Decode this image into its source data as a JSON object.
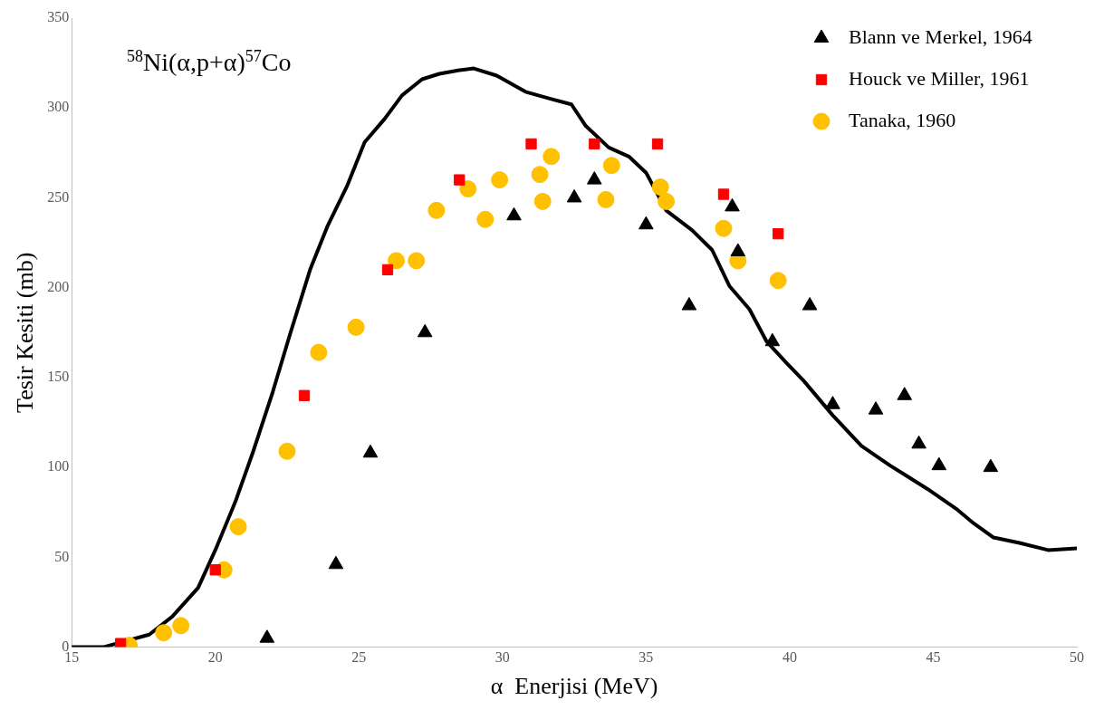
{
  "chart_data": {
    "type": "scatter",
    "xlabel": "α  Enerjisi (MeV)",
    "ylabel": "Tesir Kesiti (mb)",
    "annotations": [
      "$^{58}$Ni(α,p+α)$^{57}$Co"
    ],
    "xlim": [
      15,
      50
    ],
    "xticks": [
      15,
      20,
      25,
      30,
      35,
      40,
      45,
      50
    ],
    "ylim": [
      0,
      350
    ],
    "yticks": [
      0,
      50,
      100,
      150,
      200,
      250,
      300,
      350
    ],
    "grid": false,
    "legend": "top right",
    "series": [
      {
        "name": "Blann ve Merkel, 1964",
        "color": "#000000",
        "marker": "triangle",
        "x": [
          21.8,
          24.2,
          25.4,
          27.3,
          30.4,
          32.5,
          33.2,
          35.0,
          36.5,
          38.0,
          38.2,
          39.4,
          40.7,
          41.5,
          43.0,
          44.0,
          44.5,
          45.2,
          47.0
        ],
        "values": [
          5,
          46,
          108,
          175,
          240,
          250,
          260,
          235,
          190,
          245,
          220,
          170,
          190,
          135,
          132,
          140,
          113,
          101,
          100
        ]
      },
      {
        "name": "Houck ve Miller, 1961",
        "color": "#ff0000",
        "marker": "square",
        "x": [
          16.7,
          20.0,
          23.1,
          26.0,
          28.5,
          31.0,
          33.2,
          35.4,
          37.7,
          39.6
        ],
        "values": [
          2,
          43,
          140,
          210,
          260,
          280,
          280,
          280,
          252,
          230
        ]
      },
      {
        "name": "Tanaka, 1960",
        "color": "#ffc000",
        "marker": "circle",
        "x": [
          17.0,
          18.2,
          18.8,
          20.3,
          20.8,
          22.5,
          23.6,
          24.9,
          26.3,
          27.0,
          27.7,
          28.8,
          29.4,
          29.9,
          31.3,
          31.4,
          31.7,
          33.6,
          33.8,
          35.5,
          35.7,
          37.7,
          38.2,
          39.6
        ],
        "values": [
          1,
          8,
          12,
          43,
          67,
          109,
          164,
          178,
          215,
          215,
          243,
          255,
          238,
          260,
          263,
          248,
          273,
          249,
          268,
          256,
          248,
          233,
          215,
          204
        ]
      },
      {
        "type": "line",
        "color": "#000000",
        "marker": "none",
        "x": [
          15,
          16.1,
          17.7,
          18.5,
          19.4,
          20.0,
          20.7,
          21.3,
          22.0,
          22.6,
          23.3,
          23.9,
          24.6,
          25.2,
          25.9,
          26.5,
          27.2,
          27.8,
          28.5,
          29.0,
          29.8,
          30.8,
          31.7,
          32.4,
          32.9,
          33.7,
          34.4,
          35.0,
          35.7,
          36.6,
          37.3,
          37.9,
          38.6,
          39.2,
          39.9,
          40.5,
          41.5,
          42.5,
          43.5,
          44.1,
          44.8,
          45.8,
          46.4,
          47.1,
          48.0,
          49.0,
          50
        ],
        "values": [
          0,
          0,
          7,
          17,
          33,
          54,
          81,
          108,
          142,
          174,
          210,
          234,
          257,
          281,
          294,
          307,
          316,
          319,
          321,
          322,
          318,
          309,
          305,
          302,
          290,
          278,
          273,
          264,
          243,
          232,
          221,
          201,
          188,
          170,
          158,
          148,
          129,
          112,
          101,
          95,
          88,
          77,
          69,
          61,
          58,
          54,
          55
        ]
      }
    ]
  }
}
